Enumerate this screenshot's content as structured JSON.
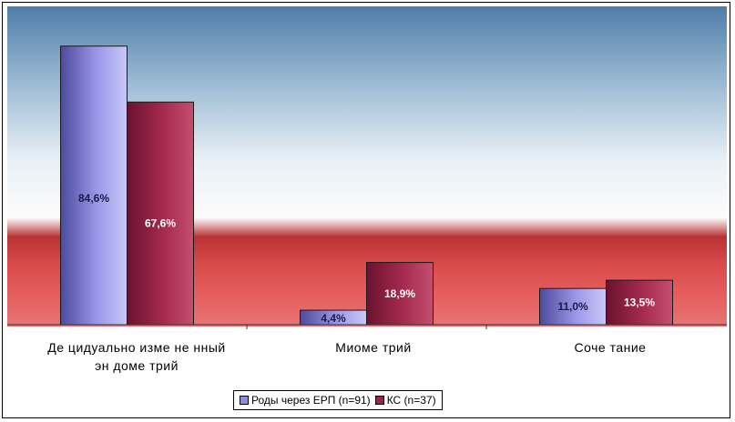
{
  "chart_data": {
    "type": "bar",
    "categories": [
      "Децидуально измененный эндометрий",
      "Миометрий",
      "Сочетание"
    ],
    "category_lines": [
      [
        "Де цидуально изме не нный",
        "эн доме трий"
      ],
      [
        "Миоме трий"
      ],
      [
        "Соче тание"
      ]
    ],
    "series": [
      {
        "name": "Роды через ЕРП (n=91)",
        "values": [
          84.6,
          4.4,
          11.0
        ],
        "labels": [
          "84,6%",
          "4,4%",
          "11,0%"
        ],
        "color": "#8e8be0",
        "color_dark": "#3d3a86"
      },
      {
        "name": "КС (n=37)",
        "values": [
          67.6,
          18.9,
          13.5
        ],
        "labels": [
          "67,6%",
          "18,9%",
          "13,5%"
        ],
        "color": "#9b2546",
        "color_dark": "#5a0f28"
      }
    ],
    "ylim": [
      0,
      87
    ],
    "grid": false,
    "legend_position": "bottom"
  },
  "legend": {
    "item1": "Роды через ЕРП (n=91)",
    "item2": "КС (n=37)"
  }
}
